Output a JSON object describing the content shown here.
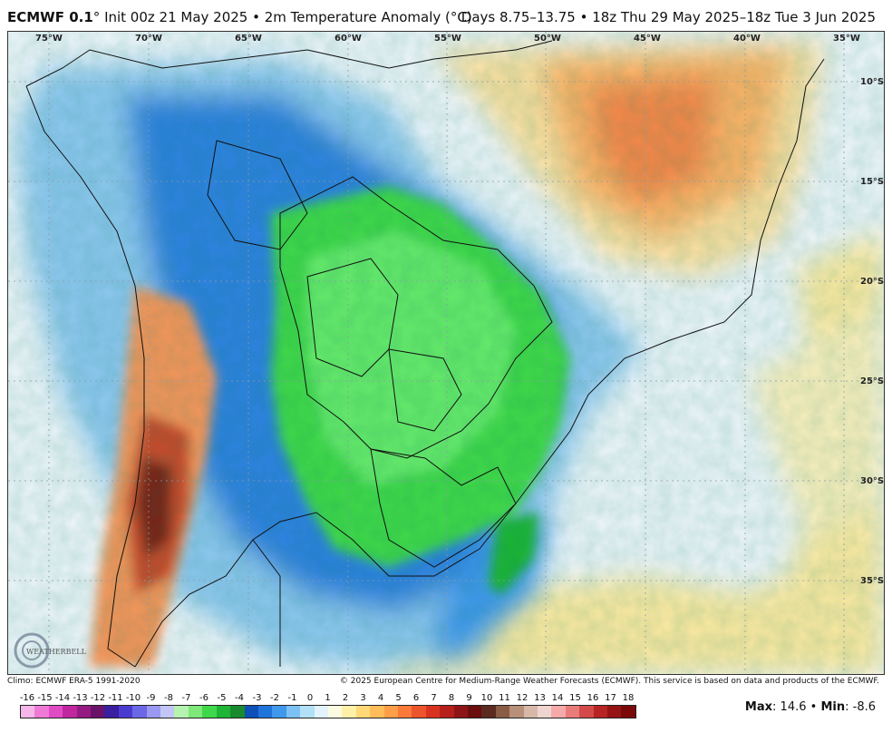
{
  "header": {
    "model": "ECMWF 0.1",
    "degree_sign": "°",
    "init": "Init 00z 21 May 2025 • 2m Temperature Anomaly (°C)",
    "valid": "Days 8.75–13.75 • 18z Thu 29 May 2025–18z Tue 3 Jun 2025"
  },
  "map": {
    "lon_labels": [
      "75°W",
      "70°W",
      "65°W",
      "60°W",
      "55°W",
      "50°W",
      "45°W",
      "40°W",
      "35°W"
    ],
    "lat_labels": [
      "10°S",
      "15°S",
      "20°S",
      "25°S",
      "30°S",
      "35°S"
    ],
    "logo_text": "WEATHERBELL"
  },
  "footer": {
    "climo": "Climo: ECMWF ERA-5 1991-2020",
    "copyright": "© 2025 European Centre for Medium-Range Weather Forecasts (ECMWF). This service is based on data and products of the ECMWF."
  },
  "colorbar": {
    "labels": [
      "-16",
      "-15",
      "-14",
      "-13",
      "-12",
      "-11",
      "-10",
      "-9",
      "-8",
      "-7",
      "-6",
      "-5",
      "-4",
      "-3",
      "-2",
      "-1",
      "0",
      "1",
      "2",
      "3",
      "4",
      "5",
      "6",
      "7",
      "8",
      "9",
      "10",
      "11",
      "12",
      "13",
      "14",
      "15",
      "16",
      "17",
      "18"
    ],
    "colors": [
      "#f7b6e8",
      "#ee7ad6",
      "#e04bc4",
      "#c0279e",
      "#951b82",
      "#6a136a",
      "#3a1fa0",
      "#4a3bd0",
      "#6a68e6",
      "#9a98f0",
      "#c2c6f7",
      "#b6f3b0",
      "#7ee87a",
      "#3fd84a",
      "#1fb436",
      "#1a8a2e",
      "#0e4fb8",
      "#1f74dc",
      "#3f98ec",
      "#7cc0f4",
      "#b2e0f6",
      "#e3f3fb",
      "#fbfbe2",
      "#fff0a8",
      "#ffd877",
      "#ffbd59",
      "#ff9e49",
      "#fb7a3a",
      "#ec542b",
      "#d8331f",
      "#b61f1a",
      "#8e1516",
      "#6a0e0e",
      "#5b2a20",
      "#8a5b45",
      "#b88f78",
      "#d7b8a8",
      "#efd5cf",
      "#f6a9a9",
      "#ea7b7b",
      "#d44a4a",
      "#b62424",
      "#961313",
      "#7a0a0a"
    ],
    "palette": {
      "land_pale": "#eef5fb",
      "cold_green": "#3fd84a",
      "cold_blue": "#1f74dc",
      "warm_orange": "#ffa55a",
      "warm_yellow": "#fde9a2"
    }
  },
  "stats": {
    "max_label": "Max",
    "max_value": "14.6",
    "sep": "•",
    "min_label": "Min",
    "min_value": "-8.6"
  }
}
